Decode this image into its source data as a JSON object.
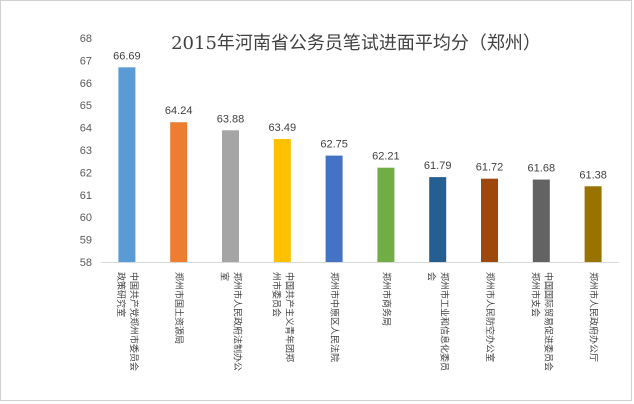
{
  "chart_data": {
    "type": "bar",
    "title": "2015年河南省公务员笔试进面平均分（郑州）",
    "xlabel": "",
    "ylabel": "",
    "ylim": [
      58,
      68
    ],
    "yticks": [
      58,
      59,
      60,
      61,
      62,
      63,
      64,
      65,
      66,
      67,
      68
    ],
    "grid": false,
    "legend": "none",
    "categories": [
      "中国共产党郑州市委员会政策研究室",
      "郑州市国土资源局",
      "郑州市人民政府法制办公室",
      "中国共产主义青年团郑州市委员会",
      "郑州市中原区人民法院",
      "郑州市商务局",
      "郑州市工业和信息化委员会",
      "郑州市人民防空办公室",
      "中国国际贸易促进委员会郑州市支会",
      "郑州市人民政府办公厅"
    ],
    "category_label_lines": [
      [
        "中国共产党郑州市委员会",
        "政策研究室"
      ],
      [
        "郑州市国土资源局"
      ],
      [
        "郑州市人民政府法制办公",
        "室"
      ],
      [
        "中国共产主义青年团郑",
        "州市委员会"
      ],
      [
        "郑州市中原区人民法院"
      ],
      [
        "郑州市商务局"
      ],
      [
        "郑州市工业和信息化委员",
        "会"
      ],
      [
        "郑州市人民防空办公室"
      ],
      [
        "中国国际贸易促进委员会",
        "郑州市支会"
      ],
      [
        "郑州市人民政府办公厅"
      ]
    ],
    "values": [
      66.69,
      64.24,
      63.88,
      63.49,
      62.75,
      62.21,
      61.79,
      61.72,
      61.68,
      61.38
    ],
    "colors": [
      "#5B9BD5",
      "#ED7D31",
      "#A5A5A5",
      "#FFC000",
      "#4472C4",
      "#70AD47",
      "#255E91",
      "#9E480E",
      "#636363",
      "#997300"
    ]
  }
}
